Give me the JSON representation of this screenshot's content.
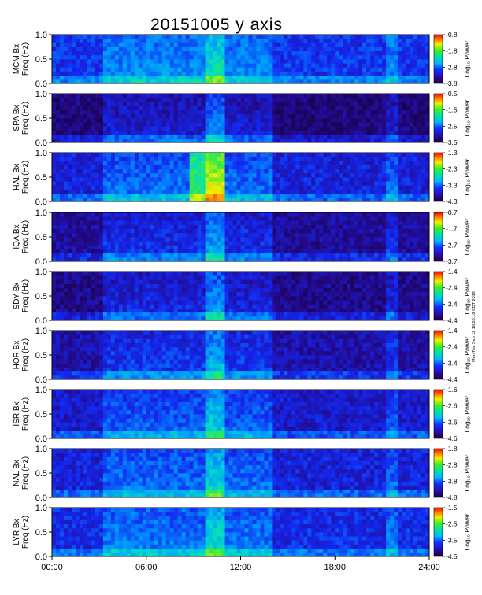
{
  "figure": {
    "title": "20151005 y axis",
    "x_ticks": [
      "00:00",
      "06:00",
      "12:00",
      "18:00",
      "24:00"
    ],
    "side_stamp": "Mon Tue Sep 12 10:58:16 CDT 2019",
    "colorbar_label": "Log₁₀ Power"
  },
  "chart_data": [
    {
      "type": "heatmap",
      "station": "MCM",
      "ylabel": [
        "MCM Bx",
        "Freq (Hz)"
      ],
      "y_ticks": [
        "0.0",
        "0.5",
        "1.0"
      ],
      "ylim": [
        0,
        1.0
      ],
      "xlim": [
        "00:00",
        "24:00"
      ],
      "colorbar_ticks": [
        "-0.8",
        "-1.8",
        "-2.8",
        "-3.8"
      ],
      "colorbar_range": [
        -3.8,
        -0.8
      ]
    },
    {
      "type": "heatmap",
      "station": "SPA",
      "ylabel": [
        "SPA Bx",
        "Freq (Hz)"
      ],
      "y_ticks": [
        "0.0",
        "0.5",
        "1.0"
      ],
      "ylim": [
        0,
        1.0
      ],
      "xlim": [
        "00:00",
        "24:00"
      ],
      "colorbar_ticks": [
        "-0.5",
        "-1.5",
        "-2.5",
        "-3.5"
      ],
      "colorbar_range": [
        -3.5,
        -0.5
      ]
    },
    {
      "type": "heatmap",
      "station": "HAL",
      "ylabel": [
        "HAL Bx",
        "Freq (Hz)"
      ],
      "y_ticks": [
        "0.0",
        "0.5",
        "1.0"
      ],
      "ylim": [
        0,
        1.0
      ],
      "xlim": [
        "00:00",
        "24:00"
      ],
      "colorbar_ticks": [
        "-1.3",
        "-2.3",
        "-3.3",
        "-4.3"
      ],
      "colorbar_range": [
        -4.3,
        -1.3
      ]
    },
    {
      "type": "heatmap",
      "station": "IQA",
      "ylabel": [
        "IQA Bx",
        "Freq (Hz)"
      ],
      "y_ticks": [
        "0.0",
        "0.5",
        "1.0"
      ],
      "ylim": [
        0,
        1.0
      ],
      "xlim": [
        "00:00",
        "24:00"
      ],
      "colorbar_ticks": [
        "-0.7",
        "-1.7",
        "-2.7",
        "-3.7"
      ],
      "colorbar_range": [
        -3.7,
        -0.7
      ]
    },
    {
      "type": "heatmap",
      "station": "SDY",
      "ylabel": [
        "SDY Bx",
        "Freq (Hz)"
      ],
      "y_ticks": [
        "0.0",
        "0.5",
        "1.0"
      ],
      "ylim": [
        0,
        1.0
      ],
      "xlim": [
        "00:00",
        "24:00"
      ],
      "colorbar_ticks": [
        "-1.4",
        "-2.4",
        "-3.4",
        "-4.4"
      ],
      "colorbar_range": [
        -4.4,
        -1.4
      ]
    },
    {
      "type": "heatmap",
      "station": "HOR",
      "ylabel": [
        "HOR Bx",
        "Freq (Hz)"
      ],
      "y_ticks": [
        "0.0",
        "0.5",
        "1.0"
      ],
      "ylim": [
        0,
        1.0
      ],
      "xlim": [
        "00:00",
        "24:00"
      ],
      "colorbar_ticks": [
        "-1.4",
        "-2.4",
        "-3.4",
        "-4.4"
      ],
      "colorbar_range": [
        -4.4,
        -1.4
      ]
    },
    {
      "type": "heatmap",
      "station": "ISR",
      "ylabel": [
        "ISR Bx",
        "Freq (Hz)"
      ],
      "y_ticks": [
        "0.0",
        "0.5",
        "1.0"
      ],
      "ylim": [
        0,
        1.0
      ],
      "xlim": [
        "00:00",
        "24:00"
      ],
      "colorbar_ticks": [
        "-1.6",
        "-2.6",
        "-3.6",
        "-4.6"
      ],
      "colorbar_range": [
        -4.6,
        -1.6
      ]
    },
    {
      "type": "heatmap",
      "station": "NAL",
      "ylabel": [
        "NAL Bx",
        "Freq (Hz)"
      ],
      "y_ticks": [
        "0.0",
        "0.5",
        "1.0"
      ],
      "ylim": [
        0,
        1.0
      ],
      "xlim": [
        "00:00",
        "24:00"
      ],
      "colorbar_ticks": [
        "-1.8",
        "-2.8",
        "-3.8",
        "-4.8"
      ],
      "colorbar_range": [
        -4.8,
        -1.8
      ]
    },
    {
      "type": "heatmap",
      "station": "LYR",
      "ylabel": [
        "LYR Bx",
        "Freq (Hz)"
      ],
      "y_ticks": [
        "0.0",
        "0.5",
        "1.0"
      ],
      "ylim": [
        0,
        1.0
      ],
      "xlim": [
        "00:00",
        "24:00"
      ],
      "colorbar_ticks": [
        "-1.5",
        "-2.5",
        "-3.5",
        "-4.5"
      ],
      "colorbar_range": [
        -4.5,
        -1.5
      ]
    }
  ]
}
